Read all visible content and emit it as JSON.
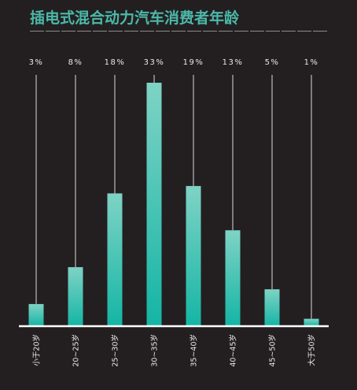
{
  "chart_data": {
    "type": "bar",
    "title": "插电式混合动力汽车消费者年龄",
    "categories": [
      "小于20岁",
      "20~25岁",
      "25~30岁",
      "30~35岁",
      "35~40岁",
      "40~45岁",
      "45~50岁",
      "大于50岁"
    ],
    "values": [
      3,
      8,
      18,
      33,
      19,
      13,
      5,
      1
    ],
    "value_labels": [
      "3%",
      "8%",
      "18%",
      "33%",
      "19%",
      "13%",
      "5%",
      "1%"
    ],
    "unit": "%",
    "xlabel": "",
    "ylabel": "",
    "ylim": [
      0,
      33
    ],
    "grid": false,
    "legend": "none",
    "colors": {
      "background": "#231f20",
      "title": "#4bb8a9",
      "bar_top": "#7fd3c5",
      "bar_bottom": "#14b5a5",
      "leader_line": "#d9d9d9",
      "baseline": "#ffffff",
      "label_text": "#e8e8e8",
      "divider": "#8c8c8c"
    }
  }
}
